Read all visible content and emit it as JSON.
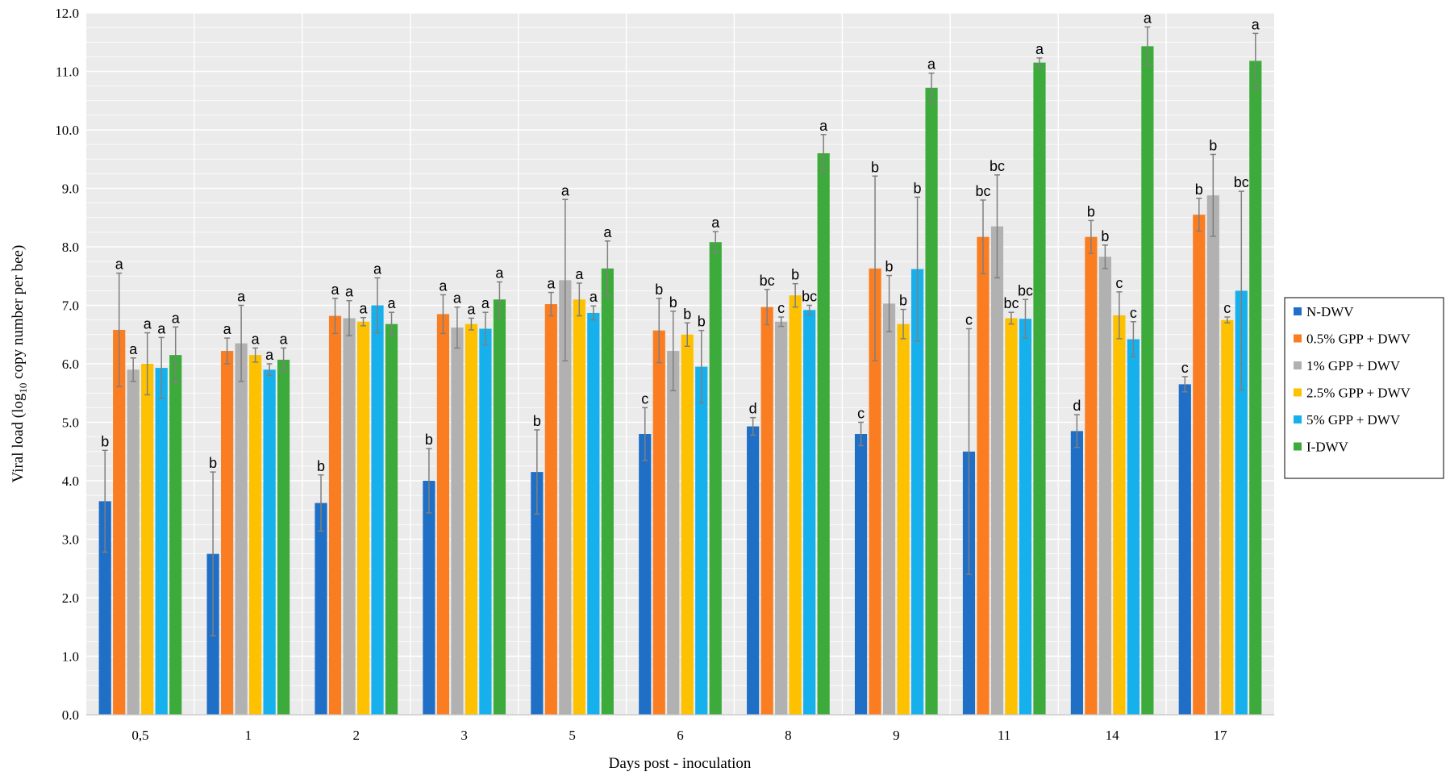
{
  "chart_data": {
    "type": "bar",
    "title": "",
    "xlabel": "Days post - inoculation",
    "ylabel_main": "Viral load  (log",
    "ylabel_sub": "10",
    "ylabel_rest": " copy number per bee)",
    "ylim": [
      0,
      12
    ],
    "ytick_step": 1,
    "ytick_labels": [
      "0.0",
      "1.0",
      "2.0",
      "3.0",
      "4.0",
      "5.0",
      "6.0",
      "7.0",
      "8.0",
      "9.0",
      "10.0",
      "11.0",
      "12.0"
    ],
    "grid": true,
    "legend_position": "right",
    "categories": [
      "0,5",
      "1",
      "2",
      "3",
      "5",
      "6",
      "8",
      "9",
      "11",
      "14",
      "17"
    ],
    "series": [
      {
        "name": "N-DWV",
        "color": "#1f6fc6",
        "values": [
          3.65,
          2.75,
          3.62,
          4.0,
          4.15,
          4.8,
          4.93,
          4.8,
          4.5,
          4.85,
          5.65
        ],
        "errors": [
          0.87,
          1.4,
          0.48,
          0.55,
          0.72,
          0.45,
          0.15,
          0.2,
          2.1,
          0.28,
          0.13
        ],
        "labels": [
          "b",
          "b",
          "b",
          "b",
          "b",
          "c",
          "d",
          "c",
          "c",
          "d",
          "c"
        ]
      },
      {
        "name": "0.5% GPP + DWV",
        "color": "#fb7d22",
        "values": [
          6.58,
          6.22,
          6.82,
          6.85,
          7.02,
          6.57,
          6.97,
          7.63,
          8.17,
          8.17,
          8.55
        ],
        "errors": [
          0.97,
          0.22,
          0.3,
          0.33,
          0.2,
          0.55,
          0.3,
          1.58,
          0.63,
          0.28,
          0.28
        ],
        "labels": [
          "a",
          "a",
          "a",
          "a",
          "a",
          "b",
          "bc",
          "b",
          "bc",
          "b",
          "b"
        ]
      },
      {
        "name": "1% GPP + DWV",
        "color": "#b1b1b1",
        "values": [
          5.9,
          6.35,
          6.78,
          6.62,
          7.43,
          6.22,
          6.72,
          7.03,
          8.35,
          7.83,
          8.88
        ],
        "errors": [
          0.2,
          0.65,
          0.3,
          0.35,
          1.38,
          0.68,
          0.08,
          0.48,
          0.88,
          0.2,
          0.7
        ],
        "labels": [
          "a",
          "a",
          "a",
          "a",
          "a",
          "b",
          "c",
          "b",
          "bc",
          "b",
          "b"
        ]
      },
      {
        "name": "2.5% GPP + DWV",
        "color": "#fdc100",
        "values": [
          6.0,
          6.15,
          6.72,
          6.68,
          7.1,
          6.5,
          7.17,
          6.68,
          6.78,
          6.83,
          6.75
        ],
        "errors": [
          0.53,
          0.12,
          0.07,
          0.1,
          0.28,
          0.2,
          0.2,
          0.25,
          0.1,
          0.4,
          0.05
        ],
        "labels": [
          "a",
          "a",
          "a",
          "a",
          "a",
          "b",
          "b",
          "b",
          "bc",
          "c",
          "c"
        ]
      },
      {
        "name": "5% GPP + DWV",
        "color": "#16b0ed",
        "values": [
          5.93,
          5.9,
          7.0,
          6.6,
          6.87,
          5.95,
          6.92,
          7.62,
          6.77,
          6.42,
          7.25
        ],
        "errors": [
          0.52,
          0.1,
          0.47,
          0.28,
          0.12,
          0.62,
          0.08,
          1.23,
          0.33,
          0.3,
          1.7
        ],
        "labels": [
          "a",
          "a",
          "a",
          "a",
          "a",
          "b",
          "bc",
          "b",
          "bc",
          "c",
          "bc"
        ]
      },
      {
        "name": "I-DWV",
        "color": "#3dab3b",
        "values": [
          6.15,
          6.07,
          6.68,
          7.1,
          7.63,
          8.08,
          9.6,
          10.72,
          11.15,
          11.43,
          11.18
        ],
        "errors": [
          0.48,
          0.2,
          0.2,
          0.3,
          0.47,
          0.18,
          0.32,
          0.25,
          0.08,
          0.33,
          0.47
        ],
        "labels": [
          "a",
          "a",
          "a",
          "a",
          "a",
          "a",
          "a",
          "a",
          "a",
          "a",
          "a"
        ]
      }
    ]
  }
}
